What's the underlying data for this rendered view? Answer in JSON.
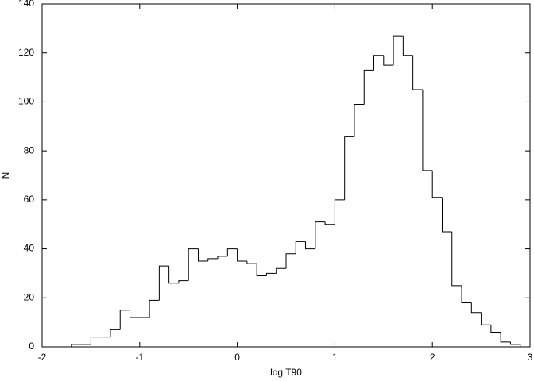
{
  "chart_data": {
    "type": "histogram",
    "xlabel": "log T90",
    "ylabel": "N",
    "bins": [
      -1.7,
      -1.6,
      -1.5,
      -1.4,
      -1.3,
      -1.2,
      -1.1,
      -1.0,
      -0.9,
      -0.8,
      -0.7,
      -0.6,
      -0.5,
      -0.4,
      -0.3,
      -0.2,
      -0.1,
      0,
      0.1,
      0.2,
      0.3,
      0.4,
      0.5,
      0.6,
      0.7,
      0.8,
      0.9,
      1.0,
      1.1,
      1.2,
      1.3,
      1.4,
      1.5,
      1.6,
      1.7,
      1.8,
      1.9,
      2.0,
      2.1,
      2.2,
      2.3,
      2.4,
      2.5,
      2.6,
      2.7,
      2.8,
      2.9
    ],
    "values": [
      1,
      1,
      4,
      4,
      7,
      15,
      12,
      12,
      19,
      33,
      26,
      27,
      40,
      35,
      36,
      37,
      40,
      35,
      34,
      29,
      30,
      32,
      38,
      43,
      40,
      51,
      50,
      60,
      86,
      99,
      113,
      119,
      115,
      127,
      119,
      105,
      72,
      61,
      47,
      25,
      18,
      14,
      9,
      6,
      2,
      1
    ],
    "color": "#000000",
    "xlim": [
      -2,
      3
    ],
    "xticks": [
      -2,
      -1,
      0,
      1,
      2,
      3
    ],
    "ylim": [
      0,
      140
    ],
    "yticks": [
      0,
      20,
      40,
      60,
      80,
      100,
      120,
      140
    ]
  }
}
